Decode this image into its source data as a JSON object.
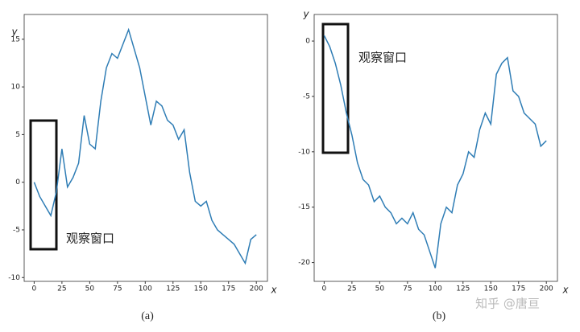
{
  "chart_data": [
    {
      "type": "line",
      "caption": "(a)",
      "xlabel": "x",
      "ylabel": "y",
      "annotation": "观察窗口",
      "x": [
        0,
        5,
        10,
        15,
        20,
        25,
        30,
        35,
        40,
        45,
        50,
        55,
        60,
        65,
        70,
        75,
        80,
        85,
        90,
        95,
        100,
        105,
        110,
        115,
        120,
        125,
        130,
        135,
        140,
        145,
        150,
        155,
        160,
        165,
        170,
        175,
        180,
        185,
        190,
        195,
        200
      ],
      "series": [
        {
          "color": "#2f7db5",
          "values": [
            0,
            -1.5,
            -2.5,
            -3.5,
            -1,
            3.5,
            -0.5,
            0.5,
            2,
            7,
            4,
            3.5,
            8.5,
            12,
            13.5,
            13,
            14.5,
            16,
            14,
            12,
            9,
            6,
            8.5,
            8,
            6.5,
            6,
            4.5,
            5.5,
            1,
            -2,
            -2.5,
            -2,
            -4,
            -5,
            -5.5,
            -6,
            -6.5,
            -7.5,
            -8.5,
            -6,
            -5.5
          ]
        }
      ],
      "xlim": [
        -9,
        210
      ],
      "ylim": [
        -10.4,
        17.6
      ],
      "xticks": [
        0,
        25,
        50,
        75,
        100,
        125,
        150,
        175,
        200
      ],
      "yticks": [
        -10,
        -5,
        0,
        5,
        10,
        15
      ]
    },
    {
      "type": "line",
      "caption": "(b)",
      "xlabel": "x",
      "ylabel": "y",
      "annotation": "观察窗口",
      "x": [
        0,
        5,
        10,
        15,
        20,
        25,
        30,
        35,
        40,
        45,
        50,
        55,
        60,
        65,
        70,
        75,
        80,
        85,
        90,
        95,
        100,
        105,
        110,
        115,
        120,
        125,
        130,
        135,
        140,
        145,
        150,
        155,
        160,
        165,
        170,
        175,
        180,
        185,
        190,
        195,
        200
      ],
      "series": [
        {
          "color": "#2f7db5",
          "values": [
            0.5,
            -0.5,
            -2,
            -4,
            -6.5,
            -8.5,
            -11,
            -12.5,
            -13,
            -14.5,
            -14,
            -15,
            -15.5,
            -16.5,
            -16,
            -16.5,
            -15.5,
            -17,
            -17.5,
            -19,
            -20.5,
            -16.5,
            -15,
            -15.5,
            -13,
            -12,
            -10,
            -10.5,
            -8,
            -6.5,
            -7.5,
            -3,
            -2,
            -1.5,
            -4.5,
            -5,
            -6.5,
            -7,
            -7.5,
            -9.5,
            -9
          ]
        }
      ],
      "xlim": [
        -9,
        210
      ],
      "ylim": [
        -21.7,
        2.4
      ],
      "xticks": [
        0,
        25,
        50,
        75,
        100,
        125,
        150,
        175,
        200
      ],
      "yticks": [
        -20,
        -15,
        -10,
        -5,
        0
      ]
    }
  ],
  "watermark": "知乎 @唐亘"
}
